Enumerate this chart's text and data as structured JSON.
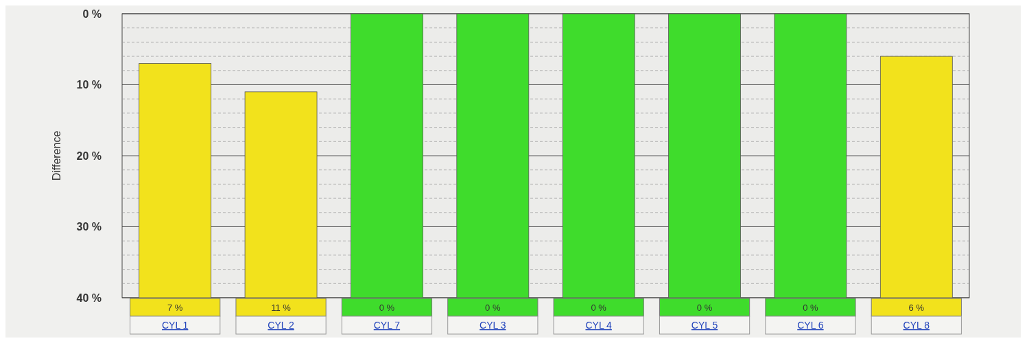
{
  "chart_data": {
    "type": "bar",
    "ylabel": "Difference",
    "categories": [
      "CYL 1",
      "CYL 2",
      "CYL 7",
      "CYL 3",
      "CYL 4",
      "CYL 5",
      "CYL 6",
      "CYL 8"
    ],
    "base": [
      40,
      40,
      40,
      40,
      40,
      40,
      40,
      40
    ],
    "values": [
      -33,
      -29,
      -40,
      -40,
      -40,
      -40,
      -40,
      -34
    ],
    "value_labels": [
      "7 %",
      "11 %",
      "0 %",
      "0 %",
      "0 %",
      "0 %",
      "0 %",
      "6 %"
    ],
    "colors": [
      "#f2e21c",
      "#f2e21c",
      "#3fdc2c",
      "#3fdc2c",
      "#3fdc2c",
      "#3fdc2c",
      "#3fdc2c",
      "#f2e21c"
    ],
    "ylim": [
      40,
      0
    ],
    "yticks": [
      {
        "value": 0,
        "label": "0 %"
      },
      {
        "value": 10,
        "label": "10 %"
      },
      {
        "value": 20,
        "label": "20 %"
      },
      {
        "value": 30,
        "label": "30 %"
      },
      {
        "value": 40,
        "label": "40 %"
      }
    ],
    "grid": true
  }
}
